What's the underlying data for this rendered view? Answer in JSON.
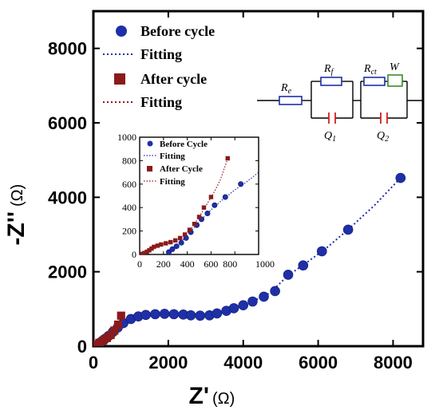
{
  "chart_data": [
    {
      "type": "scatter",
      "role": "main",
      "xlabel": "Z'",
      "xunit": "(Ω)",
      "ylabel": "-Z''",
      "yunit": "(Ω)",
      "xlim": [
        0,
        8800
      ],
      "ylim": [
        0,
        9000
      ],
      "xticks": [
        0,
        2000,
        4000,
        6000,
        8000
      ],
      "yticks": [
        0,
        2000,
        4000,
        6000,
        8000
      ],
      "legend_position": "top-left",
      "series": [
        {
          "name": "Before cycle",
          "marker": "sphere",
          "color": "#1f2fa8",
          "points": [
            [
              120,
              40
            ],
            [
              200,
              110
            ],
            [
              300,
              190
            ],
            [
              400,
              270
            ],
            [
              520,
              380
            ],
            [
              650,
              500
            ],
            [
              800,
              620
            ],
            [
              1000,
              730
            ],
            [
              1200,
              800
            ],
            [
              1400,
              840
            ],
            [
              1650,
              860
            ],
            [
              1900,
              870
            ],
            [
              2150,
              860
            ],
            [
              2400,
              850
            ],
            [
              2600,
              830
            ],
            [
              2850,
              820
            ],
            [
              3100,
              830
            ],
            [
              3300,
              880
            ],
            [
              3550,
              950
            ],
            [
              3750,
              1020
            ],
            [
              4000,
              1100
            ],
            [
              4250,
              1200
            ],
            [
              4550,
              1330
            ],
            [
              4850,
              1480
            ],
            [
              5200,
              1920
            ],
            [
              5600,
              2170
            ],
            [
              6100,
              2550
            ],
            [
              6800,
              3130
            ],
            [
              8200,
              4520
            ]
          ]
        },
        {
          "name": "Fitting",
          "line": "dotted",
          "color": "#1f2fa8",
          "points": [
            [
              100,
              30
            ],
            [
              300,
              190
            ],
            [
              600,
              450
            ],
            [
              900,
              680
            ],
            [
              1200,
              800
            ],
            [
              1600,
              860
            ],
            [
              2000,
              870
            ],
            [
              2500,
              845
            ],
            [
              3000,
              825
            ],
            [
              3400,
              900
            ],
            [
              3800,
              1030
            ],
            [
              4200,
              1180
            ],
            [
              4700,
              1420
            ],
            [
              5200,
              1900
            ],
            [
              5700,
              2250
            ],
            [
              6200,
              2620
            ],
            [
              6800,
              3130
            ],
            [
              7500,
              3780
            ],
            [
              8200,
              4520
            ]
          ]
        },
        {
          "name": "After cycle",
          "marker": "square",
          "color": "#8b1a1a",
          "points": [
            [
              80,
              40
            ],
            [
              160,
              90
            ],
            [
              260,
              150
            ],
            [
              360,
              220
            ],
            [
              460,
              300
            ],
            [
              560,
              420
            ],
            [
              660,
              580
            ],
            [
              740,
              820
            ]
          ]
        },
        {
          "name": "Fitting",
          "line": "dotted",
          "color": "#8b1a1a",
          "points": [
            [
              50,
              20
            ],
            [
              200,
              120
            ],
            [
              350,
              210
            ],
            [
              500,
              350
            ],
            [
              600,
              460
            ],
            [
              700,
              650
            ],
            [
              760,
              860
            ]
          ]
        }
      ]
    },
    {
      "type": "scatter",
      "role": "inset",
      "xlim": [
        0,
        1000
      ],
      "ylim": [
        0,
        1000
      ],
      "xticks": [
        0,
        200,
        400,
        600,
        800,
        1000
      ],
      "xtick_labels": [
        "0",
        "200",
        "400",
        "600",
        "800",
        "1000"
      ],
      "yticks": [
        0,
        200,
        400,
        600,
        800,
        1000
      ],
      "legend_position": "top-left",
      "series": [
        {
          "name": "Before Cycle",
          "marker": "sphere",
          "color": "#1f2fa8",
          "points": [
            [
              245,
              20
            ],
            [
              275,
              45
            ],
            [
              310,
              70
            ],
            [
              350,
              100
            ],
            [
              390,
              140
            ],
            [
              430,
              190
            ],
            [
              480,
              250
            ],
            [
              520,
              300
            ],
            [
              570,
              350
            ],
            [
              630,
              420
            ],
            [
              720,
              490
            ],
            [
              850,
              600
            ]
          ]
        },
        {
          "name": "Fitting",
          "line": "dotted",
          "color": "#1f2fa8",
          "points": [
            [
              220,
              0
            ],
            [
              300,
              60
            ],
            [
              400,
              160
            ],
            [
              500,
              280
            ],
            [
              600,
              380
            ],
            [
              700,
              470
            ],
            [
              800,
              550
            ],
            [
              900,
              620
            ],
            [
              1000,
              700
            ]
          ]
        },
        {
          "name": "After Cycle",
          "marker": "square",
          "color": "#8b1a1a",
          "points": [
            [
              20,
              5
            ],
            [
              40,
              12
            ],
            [
              60,
              22
            ],
            [
              80,
              35
            ],
            [
              100,
              50
            ],
            [
              120,
              65
            ],
            [
              150,
              75
            ],
            [
              180,
              85
            ],
            [
              220,
              95
            ],
            [
              260,
              105
            ],
            [
              300,
              120
            ],
            [
              340,
              140
            ],
            [
              380,
              170
            ],
            [
              420,
              210
            ],
            [
              460,
              260
            ],
            [
              500,
              320
            ],
            [
              540,
              400
            ],
            [
              600,
              490
            ],
            [
              740,
              820
            ]
          ]
        },
        {
          "name": "Fitting",
          "line": "dotted",
          "color": "#8b1a1a",
          "points": [
            [
              0,
              0
            ],
            [
              50,
              20
            ],
            [
              100,
              50
            ],
            [
              150,
              75
            ],
            [
              200,
              90
            ],
            [
              260,
              105
            ],
            [
              320,
              130
            ],
            [
              380,
              170
            ],
            [
              440,
              230
            ],
            [
              500,
              320
            ],
            [
              560,
              420
            ],
            [
              620,
              520
            ],
            [
              680,
              640
            ],
            [
              740,
              820
            ]
          ]
        }
      ]
    }
  ],
  "circuit": {
    "labels": {
      "re": "R",
      "re_sub": "e",
      "rf": "R",
      "rf_sub": "f",
      "rct": "R",
      "rct_sub": "ct",
      "w": "W",
      "q1": "Q",
      "q1_sub": "1",
      "q2": "Q",
      "q2_sub": "2"
    },
    "colors": {
      "resistor": "#1f2fa8",
      "capacitor": "#d42020",
      "warburg": "#3a8a2a",
      "wire": "#000000"
    }
  }
}
